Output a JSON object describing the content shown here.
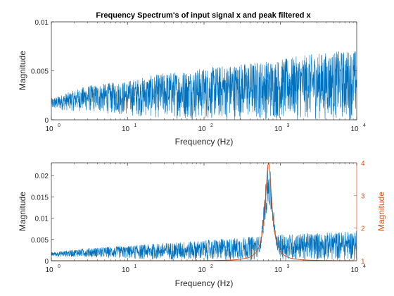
{
  "chart_data": [
    {
      "type": "line",
      "title": "Frequency Spectrum's of input signal x and peak filtered x",
      "xlabel": "Frequency (Hz)",
      "ylabel": "Magnitude",
      "xscale": "log",
      "xlim": [
        1,
        10000
      ],
      "ylim": [
        0,
        0.01
      ],
      "x_ticks": [
        1,
        10,
        100,
        1000,
        10000
      ],
      "x_tick_labels": [
        {
          "base": "10",
          "exp": "0"
        },
        {
          "base": "10",
          "exp": "1"
        },
        {
          "base": "10",
          "exp": "2"
        },
        {
          "base": "10",
          "exp": "3"
        },
        {
          "base": "10",
          "exp": "4"
        }
      ],
      "y_ticks": [
        0,
        0.005,
        0.01
      ],
      "y_tick_labels": [
        "0",
        "0.005",
        "0.01"
      ],
      "grid": false,
      "series": [
        {
          "color": "#0072BD",
          "envelope": {
            "x": [
              1,
              3,
              10,
              30,
              100,
              300,
              1000,
              3000,
              10000
            ],
            "upper": [
              0.0022,
              0.0035,
              0.004,
              0.0048,
              0.0053,
              0.0058,
              0.0062,
              0.0068,
              0.0072
            ],
            "lower": [
              0.001,
              0.0008,
              0.0004,
              0.0001,
              0.0,
              0.0,
              0.0,
              0.0,
              0.0
            ]
          }
        }
      ]
    },
    {
      "type": "line",
      "title": "",
      "xlabel": "Frequency (Hz)",
      "ylabel": "Magnitude",
      "y2label": "Magnitude",
      "xscale": "log",
      "xlim": [
        1,
        10000
      ],
      "ylim": [
        0,
        0.023
      ],
      "y2lim": [
        1,
        4
      ],
      "x_ticks": [
        1,
        10,
        100,
        1000,
        10000
      ],
      "x_tick_labels": [
        {
          "base": "10",
          "exp": "0"
        },
        {
          "base": "10",
          "exp": "1"
        },
        {
          "base": "10",
          "exp": "2"
        },
        {
          "base": "10",
          "exp": "3"
        },
        {
          "base": "10",
          "exp": "4"
        }
      ],
      "y_ticks": [
        0,
        0.005,
        0.01,
        0.015,
        0.02
      ],
      "y_tick_labels": [
        "0",
        "0.005",
        "0.01",
        "0.015",
        "0.02"
      ],
      "y2_ticks": [
        1,
        2,
        3,
        4
      ],
      "y2_tick_labels": [
        "1",
        "2",
        "3",
        "4"
      ],
      "grid": false,
      "series": [
        {
          "color": "#0072BD",
          "axis": "left",
          "peak": {
            "center": 700,
            "value": 0.0225
          },
          "envelope": {
            "x": [
              1,
              3,
              10,
              30,
              100,
              300,
              1000,
              3000,
              10000
            ],
            "upper": [
              0.002,
              0.003,
              0.0035,
              0.0042,
              0.0048,
              0.0055,
              0.0062,
              0.0066,
              0.007
            ],
            "lower": [
              0.001,
              0.0008,
              0.0004,
              0.0001,
              0.0,
              0.0,
              0.0,
              0.0,
              0.0
            ]
          }
        },
        {
          "color": "#D95319",
          "axis": "right",
          "peak": {
            "center": 700,
            "value": 4.0
          }
        }
      ]
    }
  ]
}
